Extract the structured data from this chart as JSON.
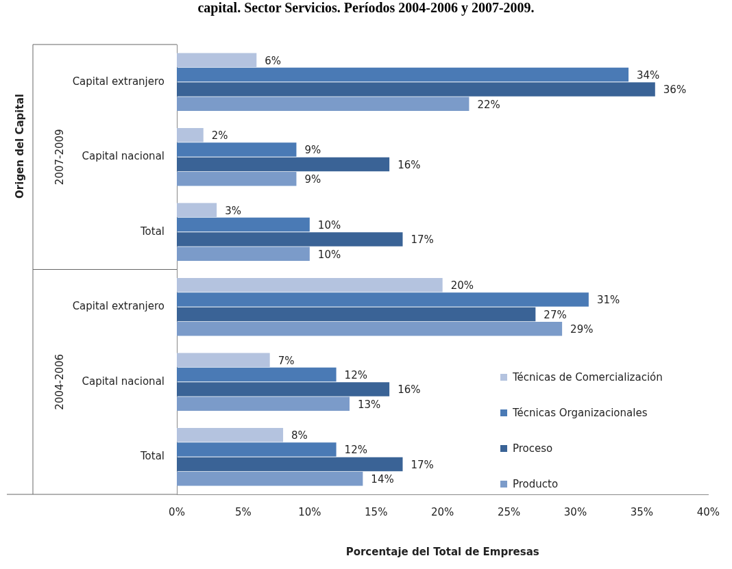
{
  "chart_data": {
    "type": "bar",
    "orientation": "horizontal",
    "title": "capital. Sector Servicios. Períodos 2004-2006 y 2007-2009.",
    "xlabel": "Porcentaje del Total de Empresas",
    "ylabel": "Origen del Capital",
    "annotations": [
      "2007-2009",
      "2004-2006"
    ],
    "categories": [
      "Capital extranjero",
      "Capital nacional",
      "Total",
      "Capital extranjero",
      "Capital nacional",
      "Total"
    ],
    "series": [
      {
        "name": "Técnicas de Comercialización",
        "color": "#b4c3df",
        "values": [
          6,
          2,
          3,
          20,
          7,
          8
        ],
        "value_labels": [
          "6%",
          "2%",
          "3%",
          "20%",
          "7%",
          "8%"
        ]
      },
      {
        "name": "Técnicas Organizacionales",
        "color": "#4a7ab5",
        "values": [
          34,
          9,
          10,
          31,
          12,
          12
        ],
        "value_labels": [
          "34%",
          "9%",
          "10%",
          "31%",
          "12%",
          "12%"
        ]
      },
      {
        "name": "Proceso",
        "color": "#3a6396",
        "values": [
          36,
          16,
          17,
          27,
          16,
          17
        ],
        "value_labels": [
          "36%",
          "16%",
          "17%",
          "27%",
          "16%",
          "17%"
        ]
      },
      {
        "name": "Producto",
        "color": "#7b9bc9",
        "values": [
          22,
          9,
          10,
          29,
          13,
          14
        ],
        "value_labels": [
          "22%",
          "9%",
          "10%",
          "29%",
          "13%",
          "14%"
        ]
      }
    ],
    "xlim": [
      0,
      40
    ],
    "xticks": [
      {
        "value": 0,
        "label": "0%"
      },
      {
        "value": 5,
        "label": "5%"
      },
      {
        "value": 10,
        "label": "10%"
      },
      {
        "value": 15,
        "label": "15%"
      },
      {
        "value": 20,
        "label": "20%"
      },
      {
        "value": 25,
        "label": "25%"
      },
      {
        "value": 30,
        "label": "30%"
      },
      {
        "value": 35,
        "label": "35%"
      },
      {
        "value": 40,
        "label": "40%"
      }
    ],
    "grid": false,
    "legend": "bottom right"
  }
}
